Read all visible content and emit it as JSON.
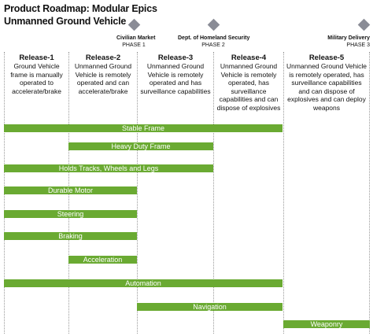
{
  "title": {
    "line1": "Product Roadmap: Modular Epics",
    "line2": "Unmanned Ground Vehicle"
  },
  "milestone_color": "#8a8c96",
  "epic_color": "#6aaa32",
  "milestones": [
    {
      "name": "Civilian Market",
      "phase": "PHASE 1"
    },
    {
      "name": "Dept. of Homeland Security",
      "phase": "PHASE 2"
    },
    {
      "name": "Military Delivery",
      "phase": "PHASE 3"
    }
  ],
  "releases": [
    {
      "name": "Release-1",
      "description": "Ground Vehicle frame is manually operated to accelerate/brake"
    },
    {
      "name": "Release-2",
      "description": "Unmanned Ground Vehicle is remotely operated and can accelerate/brake"
    },
    {
      "name": "Release-3",
      "description": "Unmanned Ground Vehicle is remotely operated and has surveillance capabilities"
    },
    {
      "name": "Release-4",
      "description": "Unmanned Ground Vehicle is remotely operated, has surveillance capabilities and can dispose of explosives"
    },
    {
      "name": "Release-5",
      "description": "Unmanned Ground Vehicle is remotely operated, has surveillance capabilities and can dispose of explosives and can deploy weapons"
    }
  ],
  "epics": [
    {
      "label": "Stable Frame"
    },
    {
      "label": "Heavy Duty Frame"
    },
    {
      "label": "Holds Tracks, Wheels and Legs"
    },
    {
      "label": "Durable Motor"
    },
    {
      "label": "Steering"
    },
    {
      "label": "Braking"
    },
    {
      "label": "Acceleration"
    },
    {
      "label": "Automation"
    },
    {
      "label": "Navigation"
    },
    {
      "label": "Weaponry"
    }
  ]
}
